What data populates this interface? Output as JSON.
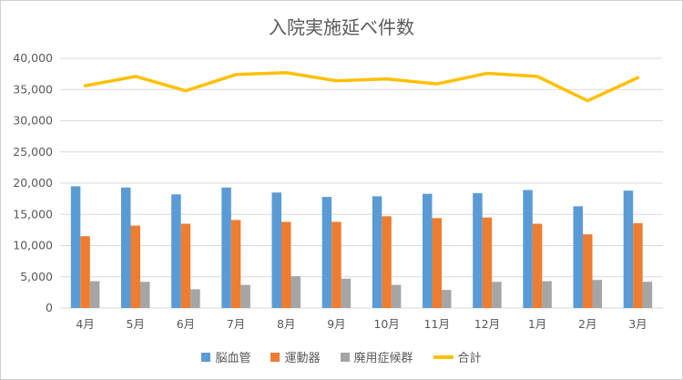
{
  "chart_data": {
    "type": "bar",
    "title": "入院実施延べ件数",
    "categories": [
      "4月",
      "5月",
      "6月",
      "7月",
      "8月",
      "9月",
      "10月",
      "11月",
      "12月",
      "1月",
      "2月",
      "3月"
    ],
    "ylim": [
      0,
      40000
    ],
    "yticks": [
      "0",
      "5,000",
      "10,000",
      "15,000",
      "20,000",
      "25,000",
      "30,000",
      "35,000",
      "40,000"
    ],
    "grid": true,
    "legend": "bottom",
    "series": [
      {
        "name": "脳血管",
        "kind": "bar",
        "color": "#5b9bd5",
        "values": [
          19500,
          19300,
          18200,
          19300,
          18500,
          17800,
          17900,
          18300,
          18400,
          18900,
          16300,
          18800
        ]
      },
      {
        "name": "運動器",
        "kind": "bar",
        "color": "#ed7d31",
        "values": [
          11500,
          13200,
          13500,
          14100,
          13800,
          13800,
          14700,
          14400,
          14500,
          13500,
          11800,
          13600
        ]
      },
      {
        "name": "廃用症候群",
        "kind": "bar",
        "color": "#a5a5a5",
        "values": [
          4300,
          4200,
          3000,
          3700,
          5100,
          4700,
          3700,
          2900,
          4200,
          4300,
          4500,
          4200
        ]
      },
      {
        "name": "合計",
        "kind": "line",
        "color": "#ffc000",
        "values": [
          35600,
          37100,
          34800,
          37400,
          37700,
          36400,
          36700,
          35900,
          37600,
          37100,
          33200,
          36900
        ]
      }
    ]
  }
}
